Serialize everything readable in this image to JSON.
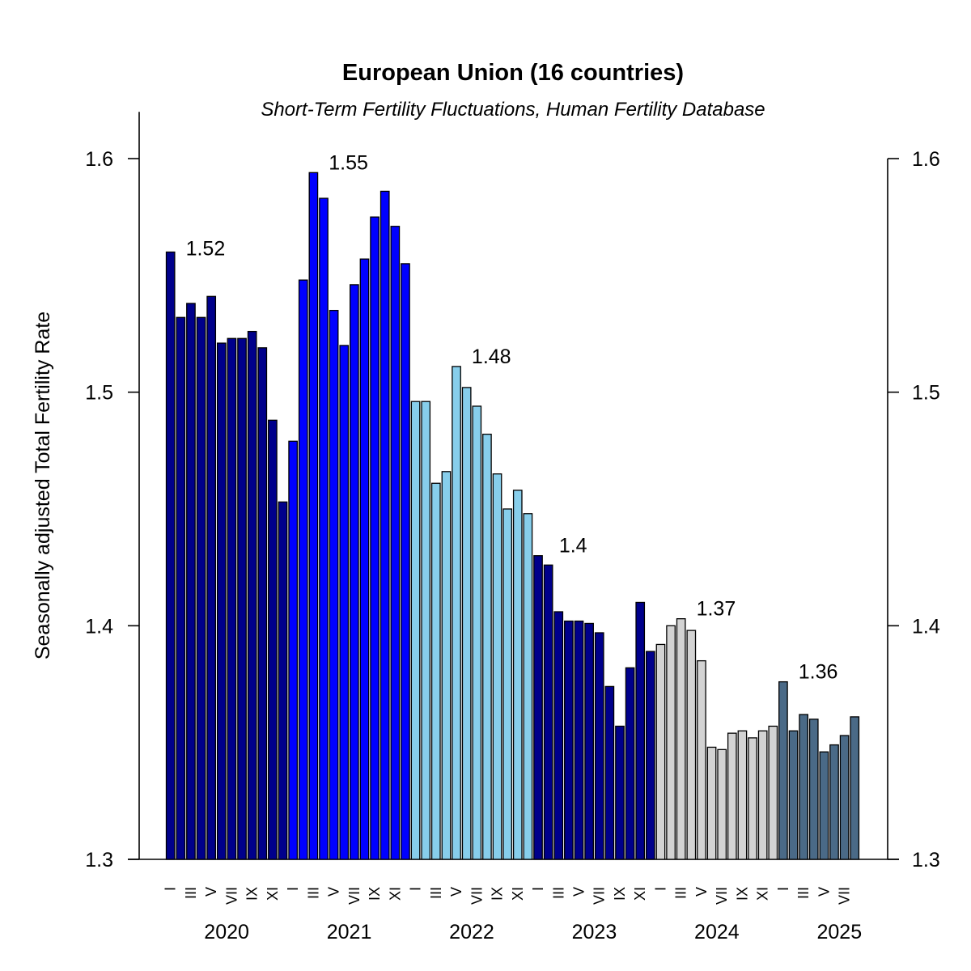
{
  "chart_data": {
    "type": "bar",
    "title": "European Union (16 countries)",
    "subtitle": "Short-Term Fertility Fluctuations, Human Fertility Database",
    "ylabel": "Seasonally adjusted Total Fertility Rate",
    "ylim": [
      1.3,
      1.62
    ],
    "yticks": [
      1.3,
      1.4,
      1.5,
      1.6
    ],
    "ytick_labels": [
      "1.3",
      "1.4",
      "1.5",
      "1.6"
    ],
    "grid": false,
    "legend": "none",
    "month_tick_labels": [
      "I",
      "III",
      "V",
      "VII",
      "IX",
      "XI"
    ],
    "series": [
      {
        "year": "2020",
        "color": "#00008b",
        "annual": "1.52",
        "values": [
          1.56,
          1.532,
          1.538,
          1.532,
          1.541,
          1.521,
          1.523,
          1.523,
          1.526,
          1.519,
          1.488,
          1.453
        ]
      },
      {
        "year": "2021",
        "color": "#0000ff",
        "annual": "1.55",
        "values": [
          1.479,
          1.548,
          1.594,
          1.583,
          1.535,
          1.52,
          1.546,
          1.557,
          1.575,
          1.586,
          1.571,
          1.555
        ]
      },
      {
        "year": "2022",
        "color": "#87ceeb",
        "annual": "1.48",
        "values": [
          1.496,
          1.496,
          1.461,
          1.466,
          1.511,
          1.502,
          1.494,
          1.482,
          1.465,
          1.45,
          1.458,
          1.448
        ]
      },
      {
        "year": "2023",
        "color": "#00008b",
        "annual": "1.4",
        "values": [
          1.43,
          1.426,
          1.406,
          1.402,
          1.402,
          1.401,
          1.397,
          1.374,
          1.357,
          1.382,
          1.41,
          1.389
        ]
      },
      {
        "year": "2024",
        "color": "#d3d3d3",
        "annual": "1.37",
        "values": [
          1.392,
          1.4,
          1.403,
          1.398,
          1.385,
          1.348,
          1.347,
          1.354,
          1.355,
          1.352,
          1.355,
          1.357
        ]
      },
      {
        "year": "2025",
        "color": "#4a6a87",
        "annual": "1.36",
        "values": [
          1.376,
          1.355,
          1.362,
          1.36,
          1.346,
          1.349,
          1.353,
          1.361
        ]
      }
    ]
  }
}
